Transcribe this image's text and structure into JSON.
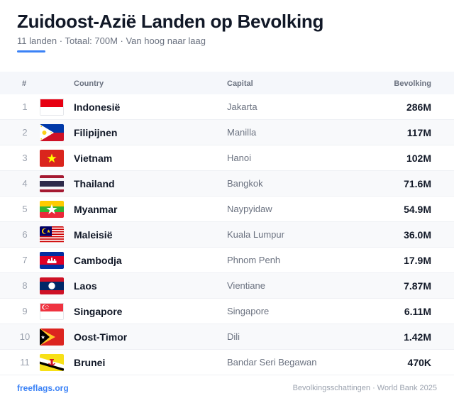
{
  "header": {
    "title": "Zuidoost-Azië Landen op Bevolking",
    "subtitle": "11 landen · Totaal: 700M · Van hoog naar laag",
    "accent_color": "#3b82f6"
  },
  "table": {
    "columns": {
      "num": "#",
      "country": "Country",
      "capital": "Capital",
      "population": "Bevolking"
    },
    "rows": [
      {
        "rank": "1",
        "country": "Indonesië",
        "capital": "Jakarta",
        "population": "286M",
        "flag_icon": "indonesia-flag-icon"
      },
      {
        "rank": "2",
        "country": "Filipijnen",
        "capital": "Manilla",
        "population": "117M",
        "flag_icon": "philippines-flag-icon"
      },
      {
        "rank": "3",
        "country": "Vietnam",
        "capital": "Hanoi",
        "population": "102M",
        "flag_icon": "vietnam-flag-icon"
      },
      {
        "rank": "4",
        "country": "Thailand",
        "capital": "Bangkok",
        "population": "71.6M",
        "flag_icon": "thailand-flag-icon"
      },
      {
        "rank": "5",
        "country": "Myanmar",
        "capital": "Naypyidaw",
        "population": "54.9M",
        "flag_icon": "myanmar-flag-icon"
      },
      {
        "rank": "6",
        "country": "Maleisië",
        "capital": "Kuala Lumpur",
        "population": "36.0M",
        "flag_icon": "malaysia-flag-icon"
      },
      {
        "rank": "7",
        "country": "Cambodja",
        "capital": "Phnom Penh",
        "population": "17.9M",
        "flag_icon": "cambodia-flag-icon"
      },
      {
        "rank": "8",
        "country": "Laos",
        "capital": "Vientiane",
        "population": "7.87M",
        "flag_icon": "laos-flag-icon"
      },
      {
        "rank": "9",
        "country": "Singapore",
        "capital": "Singapore",
        "population": "6.11M",
        "flag_icon": "singapore-flag-icon"
      },
      {
        "rank": "10",
        "country": "Oost-Timor",
        "capital": "Dili",
        "population": "1.42M",
        "flag_icon": "east-timor-flag-icon"
      },
      {
        "rank": "11",
        "country": "Brunei",
        "capital": "Bandar Seri Begawan",
        "population": "470K",
        "flag_icon": "brunei-flag-icon"
      }
    ]
  },
  "footer": {
    "site": "freeflags.org",
    "source": "Bevolkingsschattingen · World Bank 2025"
  }
}
